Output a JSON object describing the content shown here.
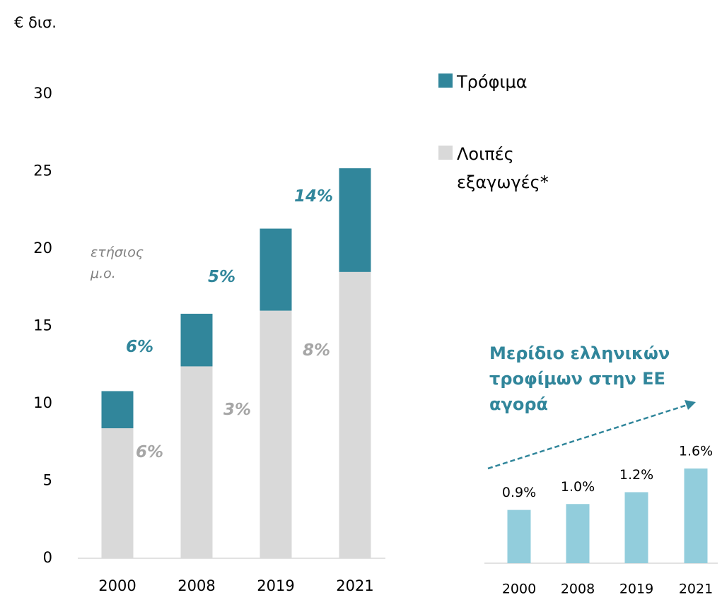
{
  "chart_data": [
    {
      "type": "stacked_bar",
      "y_label": "€ δισ.",
      "categories": [
        "2000",
        "2008",
        "2019",
        "2021"
      ],
      "series": [
        {
          "name": "Λοιπές εξαγωγές*",
          "color": "#d9d9d9",
          "values": [
            8.4,
            12.4,
            16.0,
            18.5
          ]
        },
        {
          "name": "Τρόφιμα",
          "color": "#31869b",
          "values": [
            2.4,
            3.4,
            5.3,
            6.7
          ]
        }
      ],
      "ylim": [
        0,
        30
      ],
      "yticks": [
        0,
        5,
        10,
        15,
        20,
        25,
        30
      ],
      "annotations": [
        {
          "text": "ετήσιος μ.ο.",
          "color": "#7f7f7f"
        },
        {
          "text": "6%",
          "color": "#31869b"
        },
        {
          "text": "5%",
          "color": "#31869b"
        },
        {
          "text": "14%",
          "color": "#31869b"
        },
        {
          "text": "6%",
          "color": "#a6a6a6"
        },
        {
          "text": "3%",
          "color": "#a6a6a6"
        },
        {
          "text": "8%",
          "color": "#a6a6a6"
        }
      ]
    },
    {
      "type": "bar",
      "title": "Μερίδιο ελληνικών τροφίμων στην ΕΕ αγορά",
      "categories": [
        "2000",
        "2008",
        "2019",
        "2021"
      ],
      "values": [
        0.9,
        1.0,
        1.2,
        1.6
      ],
      "value_labels": [
        "0.9%",
        "1.0%",
        "1.2%",
        "1.6%"
      ],
      "color": "#92cddc"
    }
  ]
}
